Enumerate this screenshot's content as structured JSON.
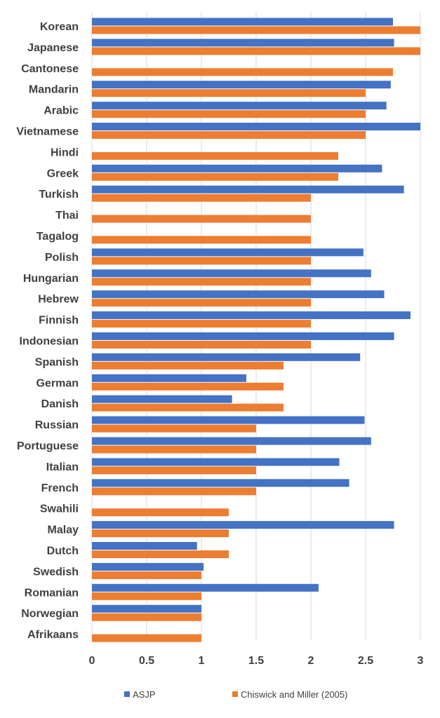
{
  "chart_data": {
    "type": "bar",
    "orientation": "horizontal",
    "categories": [
      "Korean",
      "Japanese",
      "Cantonese",
      "Mandarin",
      "Arabic",
      "Vietnamese",
      "Hindi",
      "Greek",
      "Turkish",
      "Thai",
      "Tagalog",
      "Polish",
      "Hungarian",
      "Hebrew",
      "Finnish",
      "Indonesian",
      "Spanish",
      "German",
      "Danish",
      "Russian",
      "Portuguese",
      "Italian",
      "French",
      "Swahili",
      "Malay",
      "Dutch",
      "Swedish",
      "Romanian",
      "Norwegian",
      "Afrikaans"
    ],
    "series": [
      {
        "name": "ASJP",
        "color": "#4472c4",
        "values": [
          2.75,
          2.76,
          null,
          2.73,
          2.69,
          3.0,
          null,
          2.65,
          2.85,
          null,
          null,
          2.48,
          2.55,
          2.67,
          2.91,
          2.76,
          2.45,
          1.41,
          1.28,
          2.49,
          2.55,
          2.26,
          2.35,
          null,
          2.76,
          0.96,
          1.02,
          2.07,
          1.0,
          null
        ]
      },
      {
        "name": "Chiswick and Miller (2005)",
        "color": "#ed7d31",
        "values": [
          3.0,
          3.0,
          2.75,
          2.5,
          2.5,
          2.5,
          2.25,
          2.25,
          2.0,
          2.0,
          2.0,
          2.0,
          2.0,
          2.0,
          2.0,
          2.0,
          1.75,
          1.75,
          1.75,
          1.5,
          1.5,
          1.5,
          1.5,
          1.25,
          1.25,
          1.25,
          1.0,
          1.0,
          1.0,
          1.0
        ]
      }
    ],
    "xlim": [
      0,
      3
    ],
    "xticks": [
      "0",
      "0.5",
      "1",
      "1.5",
      "2",
      "2.5",
      "3"
    ],
    "grid": true,
    "legend_position": "bottom",
    "title": "",
    "xlabel": "",
    "ylabel": ""
  }
}
